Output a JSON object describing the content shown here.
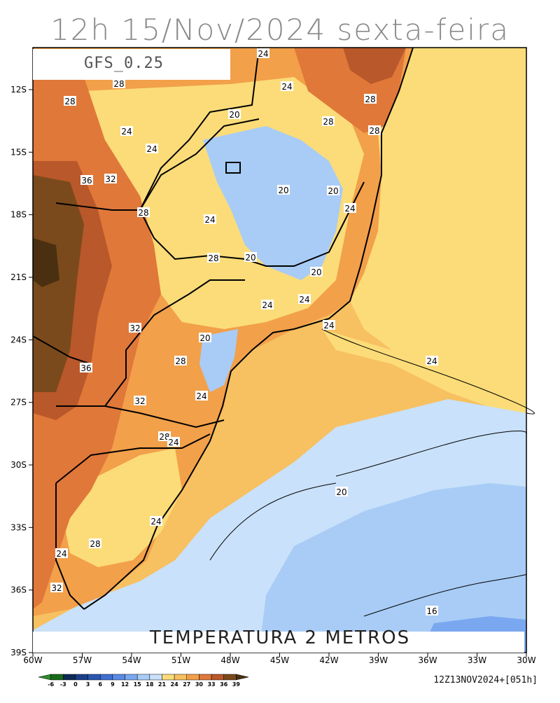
{
  "title": "12h 15/Nov/2024 sexta-feira",
  "model": "GFS_0.25",
  "variable": "TEMPERATURA 2 METROS",
  "run": "12Z13NOV2024+[051h]",
  "lat_ticks": [
    "12S",
    "15S",
    "18S",
    "21S",
    "24S",
    "27S",
    "30S",
    "33S",
    "36S",
    "39S"
  ],
  "lon_ticks": [
    "60W",
    "57W",
    "54W",
    "51W",
    "48W",
    "45W",
    "42W",
    "39W",
    "36W",
    "33W",
    "30W"
  ],
  "colorbar": {
    "labels": [
      "-6",
      "-3",
      "0",
      "3",
      "6",
      "9",
      "12",
      "15",
      "18",
      "21",
      "24",
      "27",
      "30",
      "33",
      "36",
      "39"
    ],
    "colors": [
      "#2e8b2e",
      "#1a6a1a",
      "#0e2a55",
      "#1a3f8a",
      "#2a55b0",
      "#3f6fd0",
      "#5a8ae6",
      "#7aa8f0",
      "#a8ccf6",
      "#c9e1fa",
      "#fbdc78",
      "#f7c060",
      "#f2a04a",
      "#e0783a",
      "#b9582a",
      "#7a4a1c",
      "#4a3010"
    ]
  },
  "contour_labels": [
    {
      "text": "24"
    },
    {
      "text": "28"
    },
    {
      "text": "28"
    },
    {
      "text": "24"
    },
    {
      "text": "24"
    },
    {
      "text": "20"
    },
    {
      "text": "24"
    },
    {
      "text": "28"
    },
    {
      "text": "28"
    },
    {
      "text": "28"
    },
    {
      "text": "36"
    },
    {
      "text": "32"
    },
    {
      "text": "20"
    },
    {
      "text": "20"
    },
    {
      "text": "24"
    },
    {
      "text": "28"
    },
    {
      "text": "24"
    },
    {
      "text": "28"
    },
    {
      "text": "20"
    },
    {
      "text": "20"
    },
    {
      "text": "24"
    },
    {
      "text": "24"
    },
    {
      "text": "24"
    },
    {
      "text": "32"
    },
    {
      "text": "20"
    },
    {
      "text": "24"
    },
    {
      "text": "28"
    },
    {
      "text": "36"
    },
    {
      "text": "24"
    },
    {
      "text": "32"
    },
    {
      "text": "28"
    },
    {
      "text": "24"
    },
    {
      "text": "20"
    },
    {
      "text": "24"
    },
    {
      "text": "28"
    },
    {
      "text": "24"
    },
    {
      "text": "32"
    },
    {
      "text": "16"
    }
  ]
}
